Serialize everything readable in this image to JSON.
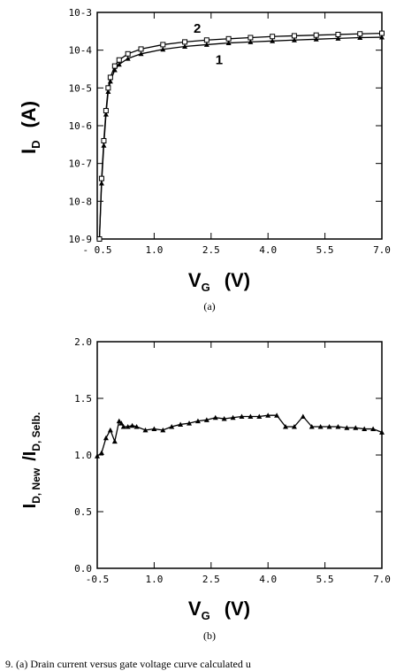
{
  "caption_a": "(a)",
  "caption_b": "(b)",
  "bottom_caption": "9. (a) Drain current versus gate voltage curve calculated u",
  "chart_data": [
    {
      "type": "line",
      "xlabel": {
        "main": "V",
        "sub": "G",
        "unit": "(V)"
      },
      "ylabel": {
        "main": "I",
        "sub": "D",
        "unit": "(A)"
      },
      "x_ticks": [
        "- 0.5",
        "1.0",
        "2.5",
        "4.0",
        "5.5",
        "7.0"
      ],
      "y_ticks": [
        "10-9",
        "10-8",
        "10-7",
        "10-6",
        "10-5",
        "10-4",
        "10-3"
      ],
      "xlim": [
        0.5,
        7.0
      ],
      "ylim": [
        1e-09,
        0.001
      ],
      "y_scale": "log",
      "series": [
        {
          "name": "1",
          "x": [
            0.55,
            0.6,
            0.65,
            0.7,
            0.75,
            0.8,
            0.9,
            1.0,
            1.2,
            1.5,
            2.0,
            2.5,
            3.0,
            3.5,
            4.0,
            4.5,
            5.0,
            5.5,
            6.0,
            6.5,
            7.0
          ],
          "y": [
            1e-09,
            3e-08,
            3e-07,
            2e-06,
            8e-06,
            1.5e-05,
            3e-05,
            4.2e-05,
            6e-05,
            8e-05,
            0.000105,
            0.000125,
            0.00014,
            0.000155,
            0.000165,
            0.000175,
            0.000185,
            0.000195,
            0.000205,
            0.000215,
            0.00022
          ]
        },
        {
          "name": "2",
          "x": [
            0.55,
            0.6,
            0.65,
            0.7,
            0.75,
            0.8,
            0.9,
            1.0,
            1.2,
            1.5,
            2.0,
            2.5,
            3.0,
            3.5,
            4.0,
            4.5,
            5.0,
            5.5,
            6.0,
            6.5,
            7.0
          ],
          "y": [
            1e-09,
            4e-08,
            4e-07,
            2.5e-06,
            1e-05,
            1.9e-05,
            3.8e-05,
            5.5e-05,
            8e-05,
            0.000107,
            0.00014,
            0.000165,
            0.000185,
            0.0002,
            0.000215,
            0.00023,
            0.00024,
            0.00025,
            0.00026,
            0.00027,
            0.00028
          ]
        }
      ]
    },
    {
      "type": "line",
      "xlabel": {
        "main": "V",
        "sub": "G",
        "unit": "(V)"
      },
      "ylabel": {
        "main": "I",
        "sub": "D, New",
        "main2": "/I",
        "sub2": "D, Selb."
      },
      "x_ticks": [
        "-0.5",
        "1.0",
        "2.5",
        "4.0",
        "5.5",
        "7.0"
      ],
      "y_ticks": [
        "0.0",
        "0.5",
        "1.0",
        "1.5",
        "2.0"
      ],
      "xlim": [
        0.5,
        7.0
      ],
      "ylim": [
        0.0,
        2.0
      ],
      "series": [
        {
          "x": [
            0.5,
            0.6,
            0.7,
            0.8,
            0.9,
            1.0,
            1.05,
            1.1,
            1.2,
            1.3,
            1.4,
            1.6,
            1.8,
            2.0,
            2.2,
            2.4,
            2.6,
            2.8,
            3.0,
            3.2,
            3.4,
            3.6,
            3.8,
            4.0,
            4.2,
            4.4,
            4.6,
            4.8,
            5.0,
            5.2,
            5.4,
            5.6,
            5.8,
            6.0,
            6.2,
            6.4,
            6.6,
            6.8,
            7.0
          ],
          "y": [
            0.99,
            1.02,
            1.15,
            1.22,
            1.12,
            1.3,
            1.28,
            1.25,
            1.25,
            1.26,
            1.25,
            1.22,
            1.23,
            1.22,
            1.25,
            1.27,
            1.28,
            1.3,
            1.31,
            1.33,
            1.32,
            1.33,
            1.34,
            1.34,
            1.34,
            1.35,
            1.35,
            1.25,
            1.25,
            1.34,
            1.25,
            1.25,
            1.25,
            1.25,
            1.24,
            1.24,
            1.23,
            1.23,
            1.2
          ]
        }
      ]
    }
  ]
}
